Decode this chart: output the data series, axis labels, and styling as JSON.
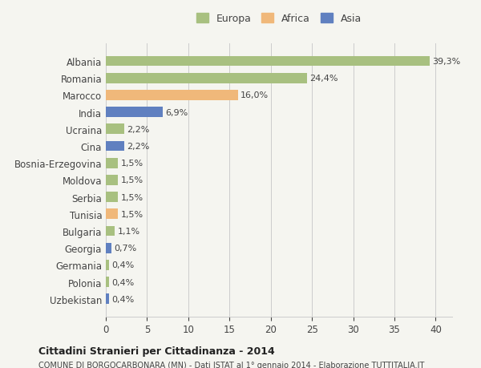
{
  "countries": [
    "Albania",
    "Romania",
    "Marocco",
    "India",
    "Ucraina",
    "Cina",
    "Bosnia-Erzegovina",
    "Moldova",
    "Serbia",
    "Tunisia",
    "Bulgaria",
    "Georgia",
    "Germania",
    "Polonia",
    "Uzbekistan"
  ],
  "values": [
    39.3,
    24.4,
    16.0,
    6.9,
    2.2,
    2.2,
    1.5,
    1.5,
    1.5,
    1.5,
    1.1,
    0.7,
    0.4,
    0.4,
    0.4
  ],
  "labels": [
    "39,3%",
    "24,4%",
    "16,0%",
    "6,9%",
    "2,2%",
    "2,2%",
    "1,5%",
    "1,5%",
    "1,5%",
    "1,5%",
    "1,1%",
    "0,7%",
    "0,4%",
    "0,4%",
    "0,4%"
  ],
  "continent": [
    "Europa",
    "Europa",
    "Africa",
    "Asia",
    "Europa",
    "Asia",
    "Europa",
    "Europa",
    "Europa",
    "Africa",
    "Europa",
    "Asia",
    "Europa",
    "Europa",
    "Asia"
  ],
  "colors": {
    "Europa": "#a8c080",
    "Africa": "#f0b87a",
    "Asia": "#6080c0"
  },
  "legend_labels": [
    "Europa",
    "Africa",
    "Asia"
  ],
  "legend_colors": [
    "#a8c080",
    "#f0b87a",
    "#6080c0"
  ],
  "xlim": [
    0,
    42
  ],
  "xticks": [
    0,
    5,
    10,
    15,
    20,
    25,
    30,
    35,
    40
  ],
  "title": "Cittadini Stranieri per Cittadinanza - 2014",
  "subtitle": "COMUNE DI BORGOCARBONARA (MN) - Dati ISTAT al 1° gennaio 2014 - Elaborazione TUTTITALIA.IT",
  "bg_color": "#f5f5f0",
  "bar_height": 0.6
}
